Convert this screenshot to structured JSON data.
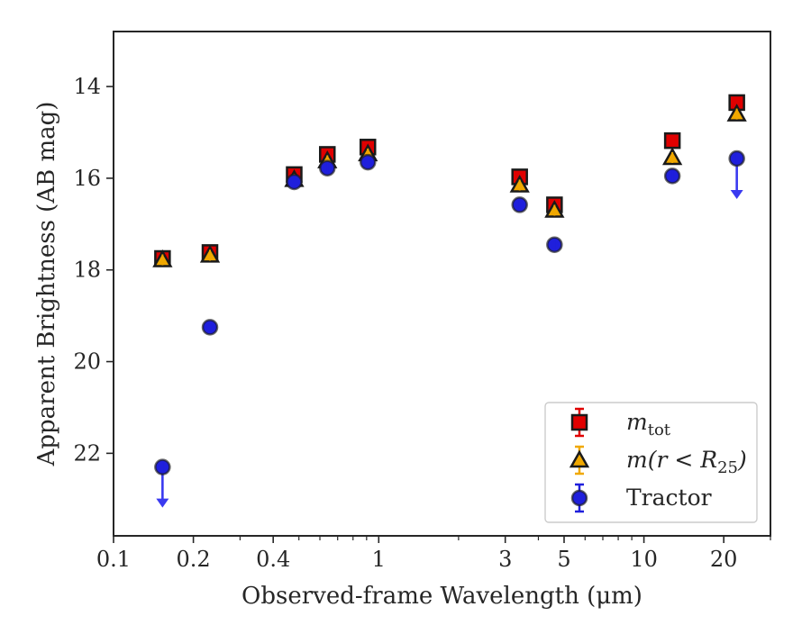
{
  "chart_data": {
    "type": "scatter",
    "xlabel": "Observed-frame Wavelength (μm)",
    "ylabel": "Apparent Brightness (AB mag)",
    "xscale": "log",
    "xlim": [
      0.1,
      30
    ],
    "ylim": [
      23.8,
      12.8
    ],
    "y_inverted": true,
    "grid": false,
    "legend_position": "bottom-right",
    "x_ticks": [
      {
        "value": 0.1,
        "label": "0.1"
      },
      {
        "value": 0.2,
        "label": "0.2"
      },
      {
        "value": 0.4,
        "label": "0.4"
      },
      {
        "value": 1,
        "label": "1"
      },
      {
        "value": 3,
        "label": "3"
      },
      {
        "value": 5,
        "label": "5"
      },
      {
        "value": 10,
        "label": "10"
      },
      {
        "value": 20,
        "label": "20"
      }
    ],
    "x_minor_ticks": [
      0.3,
      0.5,
      0.6,
      0.7,
      0.8,
      0.9,
      2,
      4,
      6,
      7,
      8,
      9,
      30
    ],
    "y_ticks": [
      {
        "value": 14,
        "label": "14"
      },
      {
        "value": 16,
        "label": "16"
      },
      {
        "value": 18,
        "label": "18"
      },
      {
        "value": 20,
        "label": "20"
      },
      {
        "value": 22,
        "label": "22"
      }
    ],
    "series": [
      {
        "name": "m_tot",
        "legend_main": "m",
        "legend_sub": "tot",
        "marker": "square",
        "color": "#e00000",
        "points": [
          {
            "x": 0.153,
            "y": 17.75
          },
          {
            "x": 0.231,
            "y": 17.62
          },
          {
            "x": 0.48,
            "y": 15.92
          },
          {
            "x": 0.64,
            "y": 15.48
          },
          {
            "x": 0.91,
            "y": 15.32
          },
          {
            "x": 3.4,
            "y": 15.97
          },
          {
            "x": 4.6,
            "y": 16.58
          },
          {
            "x": 12.8,
            "y": 15.18
          },
          {
            "x": 22.4,
            "y": 14.35
          }
        ]
      },
      {
        "name": "m(r < R25)",
        "legend_main": "m(r < R",
        "legend_sub": "25",
        "legend_tail": ")",
        "marker": "triangle",
        "color": "#f0a800",
        "points": [
          {
            "x": 0.153,
            "y": 17.78
          },
          {
            "x": 0.231,
            "y": 17.68
          },
          {
            "x": 0.48,
            "y": 16.03
          },
          {
            "x": 0.64,
            "y": 15.62
          },
          {
            "x": 0.91,
            "y": 15.47
          },
          {
            "x": 3.4,
            "y": 16.15
          },
          {
            "x": 4.6,
            "y": 16.7
          },
          {
            "x": 12.8,
            "y": 15.55
          },
          {
            "x": 22.4,
            "y": 14.6
          }
        ]
      },
      {
        "name": "Tractor",
        "legend_main": "Tractor",
        "marker": "circle",
        "color": "#1f1fdc",
        "points": [
          {
            "x": 0.153,
            "y": 22.3,
            "upper_limit": true
          },
          {
            "x": 0.231,
            "y": 19.25
          },
          {
            "x": 0.48,
            "y": 16.08
          },
          {
            "x": 0.64,
            "y": 15.78
          },
          {
            "x": 0.91,
            "y": 15.65
          },
          {
            "x": 3.4,
            "y": 16.58
          },
          {
            "x": 4.6,
            "y": 17.45
          },
          {
            "x": 12.8,
            "y": 15.95
          },
          {
            "x": 22.4,
            "y": 15.57,
            "upper_limit": true
          }
        ]
      }
    ]
  }
}
